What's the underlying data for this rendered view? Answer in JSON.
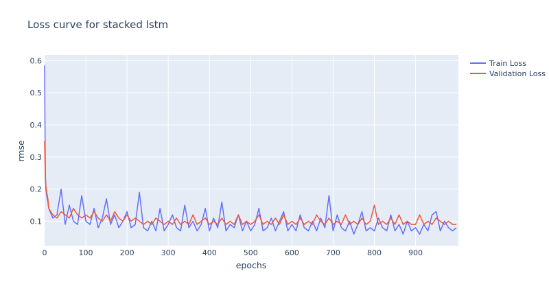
{
  "chart_data": {
    "type": "line",
    "title": "Loss curve for stacked lstm",
    "xlabel": "epochs",
    "ylabel": "rmse",
    "xlim": [
      0,
      999
    ],
    "ylim": [
      0.024,
      0.618
    ],
    "xticks": [
      0,
      100,
      200,
      300,
      400,
      500,
      600,
      700,
      800,
      900
    ],
    "yticks": [
      0.1,
      0.2,
      0.3,
      0.4,
      0.5,
      0.6
    ],
    "grid": true,
    "legend_position": "top-right-outside",
    "x": [
      0,
      1,
      2,
      3,
      5,
      8,
      10,
      20,
      30,
      40,
      50,
      60,
      70,
      80,
      90,
      100,
      110,
      120,
      130,
      140,
      150,
      160,
      170,
      180,
      190,
      200,
      210,
      220,
      230,
      240,
      250,
      260,
      270,
      280,
      290,
      300,
      310,
      320,
      330,
      340,
      350,
      360,
      370,
      380,
      390,
      400,
      410,
      420,
      430,
      440,
      450,
      460,
      470,
      480,
      490,
      500,
      510,
      520,
      530,
      540,
      550,
      560,
      570,
      580,
      590,
      600,
      610,
      620,
      630,
      640,
      650,
      660,
      670,
      680,
      690,
      700,
      710,
      720,
      730,
      740,
      750,
      760,
      770,
      780,
      790,
      800,
      810,
      820,
      830,
      840,
      850,
      860,
      870,
      880,
      890,
      900,
      910,
      920,
      930,
      940,
      950,
      960,
      970,
      980,
      990,
      999
    ],
    "series": [
      {
        "name": "Train Loss",
        "color": "#636efa",
        "values": [
          0.585,
          0.38,
          0.25,
          0.2,
          0.18,
          0.16,
          0.14,
          0.11,
          0.12,
          0.2,
          0.09,
          0.15,
          0.1,
          0.09,
          0.18,
          0.1,
          0.09,
          0.14,
          0.08,
          0.11,
          0.17,
          0.09,
          0.12,
          0.08,
          0.1,
          0.13,
          0.08,
          0.09,
          0.19,
          0.08,
          0.07,
          0.1,
          0.07,
          0.14,
          0.07,
          0.09,
          0.12,
          0.08,
          0.07,
          0.15,
          0.08,
          0.1,
          0.07,
          0.09,
          0.14,
          0.07,
          0.11,
          0.08,
          0.16,
          0.07,
          0.09,
          0.08,
          0.12,
          0.07,
          0.1,
          0.07,
          0.09,
          0.14,
          0.07,
          0.08,
          0.11,
          0.07,
          0.1,
          0.13,
          0.07,
          0.09,
          0.07,
          0.12,
          0.08,
          0.07,
          0.1,
          0.07,
          0.11,
          0.08,
          0.18,
          0.07,
          0.12,
          0.08,
          0.07,
          0.1,
          0.06,
          0.09,
          0.13,
          0.07,
          0.08,
          0.07,
          0.11,
          0.08,
          0.07,
          0.12,
          0.07,
          0.09,
          0.06,
          0.1,
          0.07,
          0.08,
          0.06,
          0.09,
          0.07,
          0.12,
          0.13,
          0.07,
          0.1,
          0.08,
          0.07,
          0.08
        ]
      },
      {
        "name": "Validation Loss",
        "color": "#EF553B",
        "values": [
          0.35,
          0.28,
          0.23,
          0.21,
          0.19,
          0.17,
          0.14,
          0.12,
          0.11,
          0.13,
          0.12,
          0.11,
          0.14,
          0.12,
          0.11,
          0.12,
          0.11,
          0.13,
          0.11,
          0.1,
          0.12,
          0.1,
          0.13,
          0.11,
          0.1,
          0.12,
          0.1,
          0.11,
          0.1,
          0.09,
          0.1,
          0.09,
          0.11,
          0.1,
          0.09,
          0.1,
          0.09,
          0.11,
          0.09,
          0.1,
          0.09,
          0.12,
          0.09,
          0.1,
          0.11,
          0.09,
          0.1,
          0.09,
          0.11,
          0.09,
          0.1,
          0.09,
          0.12,
          0.09,
          0.1,
          0.09,
          0.1,
          0.12,
          0.09,
          0.1,
          0.09,
          0.11,
          0.09,
          0.12,
          0.09,
          0.1,
          0.09,
          0.11,
          0.09,
          0.1,
          0.09,
          0.12,
          0.1,
          0.09,
          0.11,
          0.09,
          0.1,
          0.09,
          0.12,
          0.09,
          0.1,
          0.09,
          0.11,
          0.09,
          0.1,
          0.15,
          0.09,
          0.1,
          0.09,
          0.11,
          0.09,
          0.12,
          0.09,
          0.1,
          0.09,
          0.09,
          0.12,
          0.09,
          0.1,
          0.09,
          0.11,
          0.1,
          0.09,
          0.1,
          0.09,
          0.09
        ]
      }
    ]
  }
}
